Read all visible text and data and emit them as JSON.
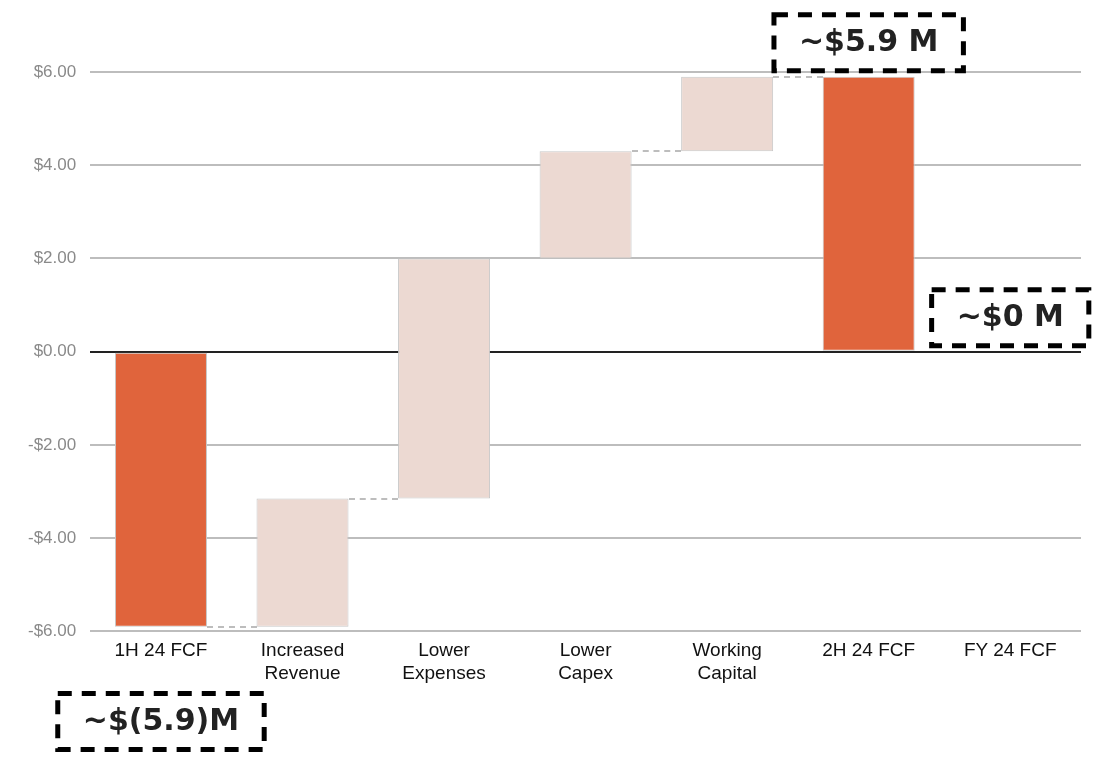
{
  "chart_data": {
    "type": "bar",
    "categories": [
      "1H 24 FCF",
      "Increased Revenue",
      "Lower Expenses",
      "Lower Capex",
      "Working Capital",
      "2H 24 FCF",
      "FY 24 FCF"
    ],
    "values": [
      -5.9,
      2.75,
      5.15,
      2.3,
      1.6,
      5.9,
      0
    ],
    "base": [
      0,
      -5.9,
      -3.15,
      2,
      4.3,
      0,
      null
    ],
    "colors": [
      "#e0643c",
      "#ecd9d2",
      "#ecd9d2",
      "#ecd9d2",
      "#ecd9d2",
      "#e0643c",
      "#e0643c"
    ],
    "ylim": [
      -6,
      6
    ],
    "yticks": [
      {
        "value": -6,
        "label": "-$6.00"
      },
      {
        "value": -4,
        "label": "-$4.00"
      },
      {
        "value": -2,
        "label": "-$2.00"
      },
      {
        "value": 0,
        "label": "$0.00"
      },
      {
        "value": 2,
        "label": "$2.00"
      },
      {
        "value": 4,
        "label": "$4.00"
      },
      {
        "value": 6,
        "label": "$6.00"
      }
    ],
    "grid": "y",
    "legend": false,
    "annotations": [
      {
        "text": "~$5.9 M",
        "x": "2H 24 FCF",
        "y": 5.9
      },
      {
        "text": "~$0 M",
        "x": "FY 24 FCF",
        "y": 0
      },
      {
        "text": "~$(5.9)M",
        "x": "1H 24 FCF",
        "y": -5.9
      }
    ]
  }
}
